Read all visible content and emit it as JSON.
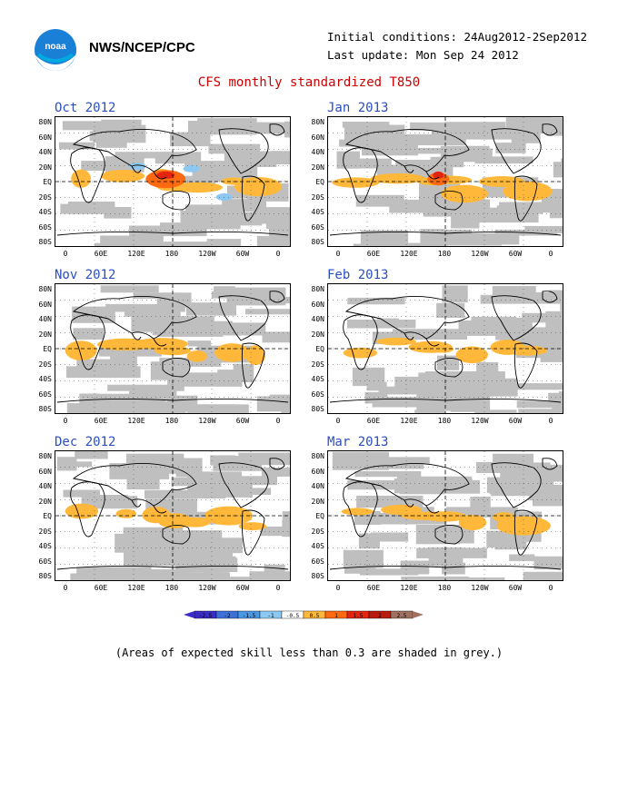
{
  "header": {
    "org": "NWS/NCEP/CPC",
    "initial_conditions": "Initial conditions: 24Aug2012-2Sep2012",
    "last_update": "Last update: Mon Sep 24 2012",
    "logo_text": "noaa"
  },
  "title": "CFS monthly standardized T850",
  "lat_labels": [
    "80N",
    "60N",
    "40N",
    "20N",
    "EQ",
    "20S",
    "40S",
    "60S",
    "80S"
  ],
  "lon_labels": [
    "0",
    "60E",
    "120E",
    "180",
    "120W",
    "60W",
    "0"
  ],
  "panels": [
    {
      "label": "Oct 2012"
    },
    {
      "label": "Jan 2013"
    },
    {
      "label": "Nov 2012"
    },
    {
      "label": "Feb 2013"
    },
    {
      "label": "Dec 2012"
    },
    {
      "label": "Mar 2013"
    }
  ],
  "colorbar": {
    "labels": [
      "-2.5",
      "-2",
      "-1.5",
      "-1",
      "-0.5",
      "0.5",
      "1",
      "1.5",
      "2",
      "2.5"
    ],
    "colors": [
      "#3a2cc7",
      "#3f6fd9",
      "#4a97e6",
      "#8cc8f2",
      "#ffffff",
      "#ffb83a",
      "#ff6a10",
      "#e22410",
      "#b91a10",
      "#a07060"
    ]
  },
  "footnote": "(Areas of expected skill less than 0.3 are shaded in grey.)"
}
